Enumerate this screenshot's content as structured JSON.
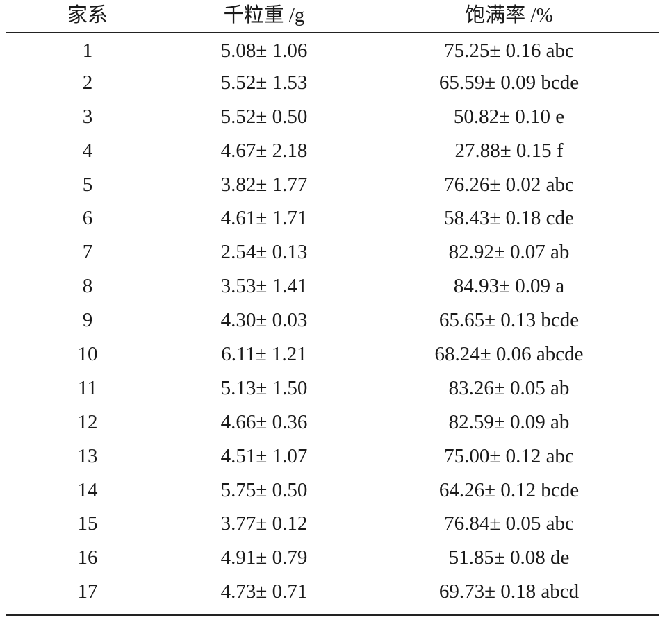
{
  "table": {
    "headers": [
      "家系",
      "千粒重 /g",
      "饱满率 /%"
    ],
    "rows": [
      [
        "1",
        "5.08± 1.06",
        "75.25± 0.16 abc"
      ],
      [
        "2",
        "5.52± 1.53",
        "65.59± 0.09 bcde"
      ],
      [
        "3",
        "5.52± 0.50",
        "50.82± 0.10 e"
      ],
      [
        "4",
        "4.67± 2.18",
        "27.88± 0.15 f"
      ],
      [
        "5",
        "3.82± 1.77",
        "76.26± 0.02 abc"
      ],
      [
        "6",
        "4.61± 1.71",
        "58.43± 0.18 cde"
      ],
      [
        "7",
        "2.54± 0.13",
        "82.92± 0.07 ab"
      ],
      [
        "8",
        "3.53± 1.41",
        "84.93± 0.09 a"
      ],
      [
        "9",
        "4.30± 0.03",
        "65.65± 0.13 bcde"
      ],
      [
        "10",
        "6.11± 1.21",
        "68.24± 0.06 abcde"
      ],
      [
        "11",
        "5.13± 1.50",
        "83.26± 0.05 ab"
      ],
      [
        "12",
        "4.66± 0.36",
        "82.59± 0.09 ab"
      ],
      [
        "13",
        "4.51± 1.07",
        "75.00± 0.12 abc"
      ],
      [
        "14",
        "5.75± 0.50",
        "64.26± 0.12 bcde"
      ],
      [
        "15",
        "3.77± 0.12",
        "76.84± 0.05 abc"
      ],
      [
        "16",
        "4.91± 0.79",
        "51.85± 0.08 de"
      ],
      [
        "17",
        "4.73± 0.71",
        "69.73± 0.18 abcd"
      ]
    ]
  }
}
